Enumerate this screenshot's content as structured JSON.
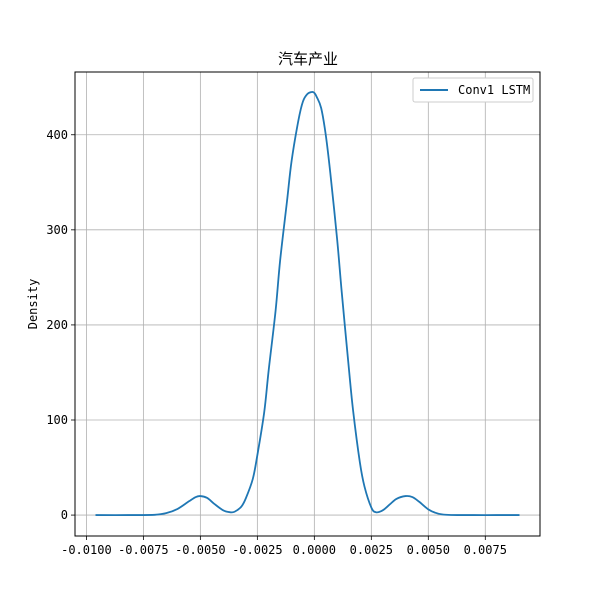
{
  "chart_data": {
    "type": "line",
    "title": "汽车产业",
    "xlabel": "",
    "ylabel": "Density",
    "xlim": [
      -0.0105,
      0.0099
    ],
    "ylim": [
      -22,
      466
    ],
    "xticks": [
      -0.01,
      -0.0075,
      -0.005,
      -0.0025,
      0.0,
      0.0025,
      0.005,
      0.0075
    ],
    "xtick_labels": [
      "-0.0100",
      "-0.0075",
      "-0.0050",
      "-0.0025",
      "0.0000",
      "0.0025",
      "0.0050",
      "0.0075"
    ],
    "yticks": [
      0,
      100,
      200,
      300,
      400
    ],
    "ytick_labels": [
      "0",
      "100",
      "200",
      "300",
      "400"
    ],
    "grid": true,
    "legend_position": "top-right",
    "series": [
      {
        "name": "Conv1 LSTM",
        "color": "#1f77b4",
        "x": [
          -0.0096,
          -0.008,
          -0.007,
          -0.0065,
          -0.006,
          -0.0055,
          -0.0052,
          -0.005,
          -0.0047,
          -0.0044,
          -0.004,
          -0.0037,
          -0.0035,
          -0.0032,
          -0.003,
          -0.0027,
          -0.0025,
          -0.0022,
          -0.002,
          -0.0017,
          -0.0015,
          -0.0012,
          -0.001,
          -0.0007,
          -0.0005,
          -0.0003,
          -0.0001,
          0.0,
          0.0001,
          0.0003,
          0.0005,
          0.0007,
          0.001,
          0.0012,
          0.0015,
          0.0017,
          0.002,
          0.0022,
          0.0025,
          0.0027,
          0.003,
          0.0033,
          0.0036,
          0.004,
          0.0043,
          0.0046,
          0.005,
          0.0053,
          0.0056,
          0.006,
          0.007,
          0.008,
          0.009
        ],
        "y": [
          0,
          0,
          0.3,
          2,
          6.5,
          14.5,
          19,
          20,
          18,
          12,
          5,
          3,
          3.5,
          9,
          18,
          38,
          63,
          108,
          153,
          215,
          268,
          330,
          372,
          415,
          435,
          443,
          445,
          444,
          440,
          428,
          400,
          360,
          290,
          235,
          158,
          110,
          55,
          30,
          8,
          3,
          5,
          11,
          17,
          20,
          19,
          14,
          6,
          2.5,
          0.7,
          0.1,
          0,
          0,
          0
        ]
      }
    ]
  }
}
